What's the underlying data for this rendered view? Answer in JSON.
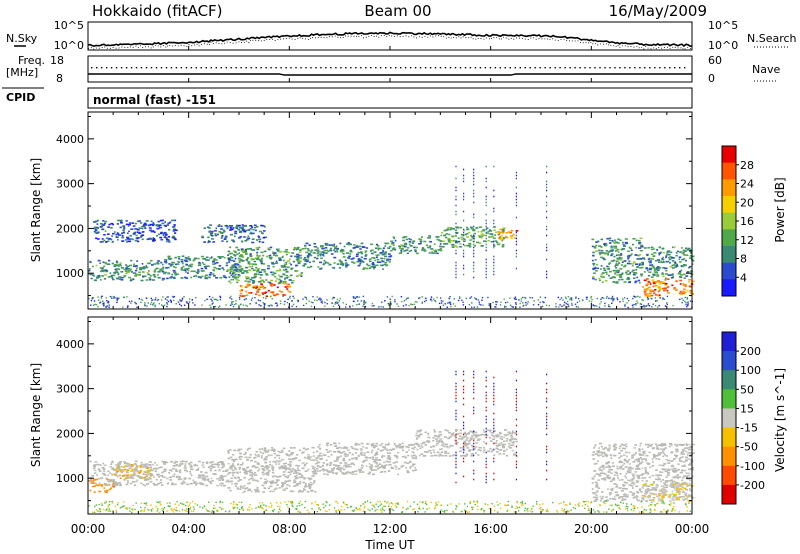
{
  "header": {
    "station": "Hokkaido (fitACF)",
    "beam": "Beam 00",
    "date": "16/May/2009"
  },
  "strips": {
    "nsky_label": "N.Sky",
    "nsearch_label": "N.Search",
    "count_ticks_left": [
      "10^5",
      "10^0"
    ],
    "count_ticks_right": [
      "10^5",
      "10^0"
    ],
    "freq_label": "Freq.",
    "freq_unit": "[MHz]",
    "freq_ticks": [
      "18",
      "8"
    ],
    "nave_label": "Nave",
    "nave_ticks": [
      "60",
      "0"
    ],
    "cpid_label": "CPID",
    "cpid_value": "normal (fast) -151"
  },
  "colors": {
    "power": [
      "#1a1aff",
      "#2a4ad0",
      "#3a8a72",
      "#4fa84b",
      "#9acc3a",
      "#f4d000",
      "#ff9a00",
      "#ff5500",
      "#e80000"
    ],
    "velocity": [
      "#1f1fd6",
      "#2a4cd0",
      "#3a8a72",
      "#4fbf3a",
      "#c8c8c0",
      "#f4c000",
      "#ff9000",
      "#ff4a00",
      "#e00000"
    ],
    "ground_scatter": "#b9b9b4"
  },
  "chart_data": [
    {
      "type": "heatmap",
      "name": "power",
      "ylabel": "Slant Range [km]",
      "yticks": [
        "1000",
        "2000",
        "3000",
        "4000"
      ],
      "ylim": [
        200,
        4600
      ],
      "xlim": [
        0,
        24
      ],
      "colorbar_label": "Power [dB]",
      "colorbar_ticks": [
        "28",
        "24",
        "20",
        "16",
        "12",
        "8",
        "4"
      ],
      "colorbar_range": [
        0,
        32
      ],
      "scatter_regions": [
        {
          "t0": 0.0,
          "t1": 3.0,
          "r0": 850,
          "r1": 1300,
          "value": 10
        },
        {
          "t0": 3.0,
          "t1": 6.0,
          "r0": 900,
          "r1": 1400,
          "value": 9
        },
        {
          "t0": 6.0,
          "t1": 8.0,
          "r0": 500,
          "r1": 800,
          "value": 26
        },
        {
          "t0": 5.5,
          "t1": 8.5,
          "r0": 800,
          "r1": 1600,
          "value": 11
        },
        {
          "t0": 8.5,
          "t1": 12.0,
          "r0": 1100,
          "r1": 1700,
          "value": 9
        },
        {
          "t0": 12.0,
          "t1": 14.0,
          "r0": 1450,
          "r1": 1850,
          "value": 10
        },
        {
          "t0": 14.0,
          "t1": 16.5,
          "r0": 1600,
          "r1": 2050,
          "value": 12
        },
        {
          "t0": 16.3,
          "t1": 17.0,
          "r0": 1750,
          "r1": 2000,
          "value": 24
        },
        {
          "t0": 20.0,
          "t1": 22.0,
          "r0": 800,
          "r1": 1800,
          "value": 10
        },
        {
          "t0": 22.0,
          "t1": 24.0,
          "r0": 500,
          "r1": 900,
          "value": 25
        },
        {
          "t0": 22.0,
          "t1": 24.0,
          "r0": 900,
          "r1": 1600,
          "value": 10
        },
        {
          "t0": 0.2,
          "t1": 3.5,
          "r0": 1700,
          "r1": 2200,
          "value": 6
        },
        {
          "t0": 4.5,
          "t1": 7.0,
          "r0": 1700,
          "r1": 2100,
          "value": 7
        }
      ]
    },
    {
      "type": "heatmap",
      "name": "velocity",
      "ylabel": "Slant Range [km]",
      "yticks": [
        "1000",
        "2000",
        "3000",
        "4000"
      ],
      "ylim": [
        200,
        4600
      ],
      "xlim": [
        0,
        24
      ],
      "colorbar_label": "Velocity [m s^-1]",
      "colorbar_ticks": [
        "200",
        "100",
        "50",
        "15",
        "-15",
        "-50",
        "-100",
        "-200"
      ],
      "colorbar_range": [
        -250,
        250
      ],
      "scatter_regions": [
        {
          "t0": 0.0,
          "t1": 1.0,
          "r0": 700,
          "r1": 1000,
          "value": -120
        },
        {
          "t0": 1.0,
          "t1": 2.5,
          "r0": 1000,
          "r1": 1350,
          "value": -80
        },
        {
          "t0": 0.0,
          "t1": 5.5,
          "r0": 850,
          "r1": 1400,
          "value": 0
        },
        {
          "t0": 5.5,
          "t1": 9.0,
          "r0": 700,
          "r1": 1700,
          "value": 0
        },
        {
          "t0": 9.0,
          "t1": 13.0,
          "r0": 1100,
          "r1": 1800,
          "value": 0
        },
        {
          "t0": 13.0,
          "t1": 17.0,
          "r0": 1500,
          "r1": 2100,
          "value": 0
        },
        {
          "t0": 20.0,
          "t1": 24.0,
          "r0": 500,
          "r1": 1800,
          "value": 0
        },
        {
          "t0": 22.0,
          "t1": 24.0,
          "r0": 500,
          "r1": 900,
          "value": -20
        }
      ]
    }
  ],
  "xaxis": {
    "ticks": [
      "00:00",
      "04:00",
      "08:00",
      "12:00",
      "16:00",
      "20:00",
      "00:00"
    ],
    "label": "Time UT"
  }
}
